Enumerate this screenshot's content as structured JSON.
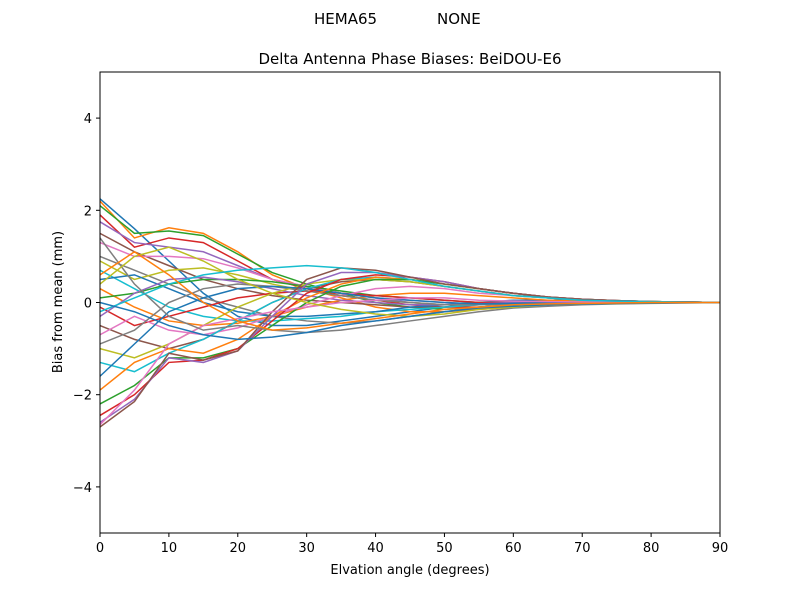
{
  "header": {
    "antenna": "HEMA65",
    "radome": "NONE"
  },
  "chart_data": {
    "type": "line",
    "title": "Delta Antenna Phase Biases: BeiDOU-E6",
    "xlabel": "Elvation angle (degrees)",
    "ylabel": "Bias from mean (mm)",
    "xlim": [
      0,
      90
    ],
    "ylim": [
      -5,
      5
    ],
    "xticks": [
      0,
      10,
      20,
      30,
      40,
      50,
      60,
      70,
      80,
      90
    ],
    "yticks": [
      -4,
      -2,
      0,
      2,
      4
    ],
    "grid": false,
    "legend": "none",
    "x": [
      0,
      5,
      10,
      15,
      20,
      25,
      30,
      35,
      40,
      45,
      50,
      55,
      60,
      65,
      70,
      75,
      80,
      85,
      90
    ],
    "series": [
      {
        "values": [
          2.25,
          1.6,
          0.9,
          0.2,
          -0.3,
          -0.5,
          -0.5,
          -0.4,
          -0.3,
          -0.2,
          -0.1,
          0.0,
          0.05,
          0.05,
          0.05,
          0.03,
          0.02,
          0.01,
          0.0
        ]
      },
      {
        "values": [
          2.2,
          1.4,
          1.62,
          1.5,
          1.1,
          0.6,
          0.3,
          0.1,
          -0.1,
          -0.2,
          -0.2,
          -0.15,
          -0.1,
          -0.05,
          0.0,
          0.0,
          0.0,
          0.0,
          0.0
        ]
      },
      {
        "values": [
          2.1,
          1.5,
          1.55,
          1.45,
          1.05,
          0.65,
          0.4,
          0.2,
          0.0,
          -0.1,
          -0.15,
          -0.1,
          -0.05,
          0.0,
          0.0,
          0.0,
          0.0,
          0.0,
          0.0
        ]
      },
      {
        "values": [
          1.9,
          1.2,
          1.4,
          1.3,
          0.9,
          0.5,
          0.3,
          0.15,
          0.05,
          -0.05,
          -0.1,
          -0.1,
          -0.05,
          0.0,
          0.0,
          0.0,
          0.0,
          0.0,
          0.0
        ]
      },
      {
        "values": [
          1.75,
          1.3,
          1.2,
          1.1,
          0.8,
          0.5,
          0.35,
          0.2,
          0.1,
          0.0,
          -0.05,
          -0.05,
          -0.03,
          0.0,
          0.0,
          0.0,
          0.0,
          0.0,
          0.0
        ]
      },
      {
        "values": [
          1.5,
          1.1,
          0.8,
          0.5,
          0.3,
          0.15,
          0.05,
          0.0,
          -0.05,
          -0.1,
          -0.1,
          -0.05,
          -0.03,
          0.0,
          0.0,
          0.0,
          0.0,
          0.0,
          0.0
        ]
      },
      {
        "values": [
          1.3,
          1.0,
          1.0,
          0.95,
          0.75,
          0.5,
          0.35,
          0.2,
          0.1,
          0.05,
          0.0,
          -0.05,
          -0.03,
          -0.02,
          0.0,
          0.0,
          0.0,
          0.0,
          0.0
        ]
      },
      {
        "values": [
          1.0,
          0.7,
          0.4,
          0.1,
          -0.1,
          -0.3,
          -0.4,
          -0.45,
          -0.4,
          -0.3,
          -0.2,
          -0.1,
          -0.05,
          0.0,
          0.0,
          0.0,
          0.0,
          0.0,
          0.0
        ]
      },
      {
        "values": [
          0.9,
          0.5,
          0.7,
          0.75,
          0.6,
          0.4,
          0.25,
          0.15,
          0.05,
          0.0,
          -0.05,
          -0.05,
          -0.03,
          0.0,
          0.0,
          0.0,
          0.0,
          0.0,
          0.0
        ]
      },
      {
        "values": [
          0.7,
          0.3,
          -0.1,
          -0.3,
          -0.4,
          -0.4,
          -0.35,
          -0.3,
          -0.2,
          -0.15,
          -0.1,
          -0.05,
          0.0,
          0.0,
          0.0,
          0.0,
          0.0,
          0.0,
          0.0
        ]
      },
      {
        "values": [
          0.5,
          0.6,
          0.3,
          0.0,
          -0.2,
          -0.3,
          -0.3,
          -0.25,
          -0.2,
          -0.1,
          -0.05,
          0.0,
          0.0,
          0.0,
          0.0,
          0.0,
          0.0,
          0.0,
          0.0
        ]
      },
      {
        "values": [
          0.3,
          -0.1,
          -0.4,
          -0.5,
          -0.45,
          -0.3,
          -0.1,
          0.05,
          0.15,
          0.2,
          0.2,
          0.15,
          0.1,
          0.05,
          0.03,
          0.02,
          0.01,
          0.0,
          0.0
        ]
      },
      {
        "values": [
          0.1,
          0.2,
          0.4,
          0.5,
          0.5,
          0.45,
          0.35,
          0.25,
          0.15,
          0.1,
          0.05,
          0.0,
          0.0,
          0.0,
          0.0,
          0.0,
          0.0,
          0.0,
          0.0
        ]
      },
      {
        "values": [
          -0.1,
          -0.5,
          -0.3,
          -0.1,
          0.1,
          0.2,
          0.25,
          0.2,
          0.15,
          0.1,
          0.05,
          0.0,
          0.0,
          0.0,
          0.0,
          0.0,
          0.0,
          0.0,
          0.0
        ]
      },
      {
        "values": [
          -0.3,
          0.2,
          0.5,
          0.55,
          0.45,
          0.3,
          0.15,
          0.05,
          0.0,
          -0.05,
          -0.05,
          -0.03,
          0.0,
          0.0,
          0.0,
          0.0,
          0.0,
          0.0,
          0.0
        ]
      },
      {
        "values": [
          -0.5,
          -0.8,
          -1.0,
          -0.8,
          -0.4,
          0.0,
          0.3,
          0.45,
          0.5,
          0.45,
          0.35,
          0.25,
          0.15,
          0.1,
          0.05,
          0.03,
          0.02,
          0.01,
          0.0
        ]
      },
      {
        "values": [
          -0.7,
          -0.3,
          -0.6,
          -0.7,
          -0.55,
          -0.3,
          -0.05,
          0.15,
          0.3,
          0.35,
          0.3,
          0.2,
          0.15,
          0.1,
          0.05,
          0.03,
          0.02,
          0.01,
          0.0
        ]
      },
      {
        "values": [
          -0.9,
          -0.6,
          0.0,
          0.3,
          0.4,
          0.35,
          0.25,
          0.15,
          0.05,
          0.0,
          -0.05,
          -0.05,
          -0.03,
          0.0,
          0.0,
          0.0,
          0.0,
          0.0,
          0.0
        ]
      },
      {
        "values": [
          -1.0,
          -1.2,
          -0.9,
          -0.5,
          -0.1,
          0.2,
          0.4,
          0.5,
          0.5,
          0.45,
          0.35,
          0.25,
          0.15,
          0.1,
          0.05,
          0.03,
          0.02,
          0.01,
          0.0
        ]
      },
      {
        "values": [
          -1.3,
          -1.5,
          -1.1,
          -0.8,
          -0.4,
          0.0,
          0.3,
          0.5,
          0.55,
          0.5,
          0.4,
          0.3,
          0.2,
          0.1,
          0.05,
          0.03,
          0.02,
          0.01,
          0.0
        ]
      },
      {
        "values": [
          -1.6,
          -0.9,
          -0.2,
          0.1,
          0.3,
          0.35,
          0.3,
          0.2,
          0.1,
          0.05,
          0.0,
          -0.03,
          -0.02,
          0.0,
          0.0,
          0.0,
          0.0,
          0.0,
          0.0
        ]
      },
      {
        "values": [
          -1.9,
          -1.3,
          -1.0,
          -1.1,
          -0.8,
          -0.3,
          0.1,
          0.4,
          0.55,
          0.5,
          0.4,
          0.3,
          0.2,
          0.12,
          0.07,
          0.04,
          0.02,
          0.01,
          0.0
        ]
      },
      {
        "values": [
          -2.2,
          -1.8,
          -1.2,
          -1.2,
          -1.0,
          -0.5,
          0.0,
          0.35,
          0.5,
          0.5,
          0.4,
          0.3,
          0.2,
          0.12,
          0.07,
          0.04,
          0.02,
          0.01,
          0.0
        ]
      },
      {
        "values": [
          -2.45,
          -2.0,
          -1.3,
          -1.25,
          -1.0,
          -0.4,
          0.2,
          0.5,
          0.6,
          0.55,
          0.45,
          0.3,
          0.2,
          0.12,
          0.07,
          0.04,
          0.02,
          0.01,
          0.0
        ]
      },
      {
        "values": [
          -2.6,
          -2.1,
          -1.2,
          -1.3,
          -1.05,
          -0.3,
          0.4,
          0.65,
          0.65,
          0.55,
          0.45,
          0.3,
          0.2,
          0.12,
          0.07,
          0.04,
          0.02,
          0.01,
          0.0
        ]
      },
      {
        "values": [
          -2.7,
          -2.15,
          -1.1,
          -1.25,
          -1.05,
          -0.2,
          0.5,
          0.75,
          0.7,
          0.55,
          0.4,
          0.3,
          0.2,
          0.12,
          0.07,
          0.04,
          0.02,
          0.01,
          0.0
        ]
      },
      {
        "values": [
          -2.65,
          -1.9,
          -0.9,
          -0.5,
          -0.35,
          -0.2,
          -0.1,
          0.0,
          0.05,
          0.1,
          0.1,
          0.05,
          0.03,
          0.02,
          0.01,
          0.0,
          0.0,
          0.0,
          0.0
        ]
      },
      {
        "values": [
          1.4,
          0.4,
          -0.3,
          -0.6,
          -0.5,
          -0.6,
          -0.65,
          -0.6,
          -0.5,
          -0.4,
          -0.3,
          -0.2,
          -0.12,
          -0.08,
          -0.05,
          -0.03,
          -0.02,
          -0.01,
          0.0
        ]
      },
      {
        "values": [
          0.4,
          1.0,
          1.2,
          0.9,
          0.5,
          0.2,
          0.0,
          -0.15,
          -0.25,
          -0.3,
          -0.25,
          -0.15,
          -0.1,
          -0.05,
          -0.03,
          -0.02,
          -0.01,
          0.0,
          0.0
        ]
      },
      {
        "values": [
          -0.2,
          0.1,
          0.4,
          0.6,
          0.7,
          0.75,
          0.8,
          0.75,
          0.65,
          0.5,
          0.35,
          0.25,
          0.15,
          0.1,
          0.05,
          0.03,
          0.02,
          0.01,
          0.0
        ]
      },
      {
        "values": [
          0.0,
          -0.2,
          -0.5,
          -0.7,
          -0.8,
          -0.75,
          -0.65,
          -0.5,
          -0.4,
          -0.3,
          -0.2,
          -0.12,
          -0.08,
          -0.05,
          -0.03,
          -0.02,
          -0.01,
          0.0,
          0.0
        ]
      },
      {
        "values": [
          0.6,
          1.1,
          0.6,
          0.0,
          -0.4,
          -0.6,
          -0.55,
          -0.45,
          -0.35,
          -0.25,
          -0.15,
          -0.1,
          -0.05,
          -0.03,
          -0.02,
          -0.01,
          0.0,
          0.0,
          0.0
        ]
      }
    ]
  }
}
